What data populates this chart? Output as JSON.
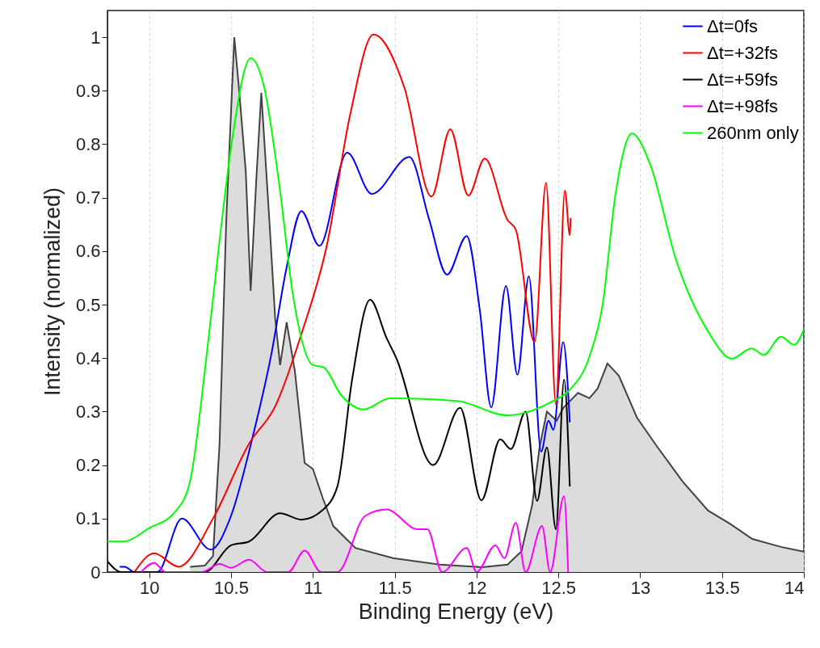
{
  "chart_data": {
    "type": "line",
    "xlabel": "Binding Energy (eV)",
    "ylabel": "Intensity (normalized)",
    "xlim": [
      9.745,
      14
    ],
    "ylim": [
      0,
      1.05
    ],
    "xticks": [
      10,
      10.5,
      11,
      11.5,
      12,
      12.5,
      13,
      13.5,
      14
    ],
    "yticks": [
      0,
      0.1,
      0.2,
      0.3,
      0.4,
      0.5,
      0.6,
      0.7,
      0.8,
      0.9,
      1
    ],
    "grid": "x",
    "legend": "top right",
    "line_style": "solid",
    "marker": "none",
    "series": [
      {
        "type": "area",
        "color": "#dcdcdc",
        "x": [
          10.25,
          10.34,
          10.39,
          10.43,
          10.47,
          10.52,
          10.55,
          10.59,
          10.62,
          10.655,
          10.685,
          10.735,
          10.77,
          10.8,
          10.84,
          10.89,
          10.95,
          11.0,
          11.06,
          11.125,
          11.26,
          11.49,
          11.775,
          12.035,
          12.19,
          12.275,
          12.34,
          12.385,
          12.43,
          12.49,
          12.53,
          12.62,
          12.69,
          12.74,
          12.8,
          12.87,
          12.98,
          13.1,
          13.26,
          13.415,
          13.55,
          13.685,
          13.86,
          14.0
        ],
        "values": [
          0.01,
          0.012,
          0.03,
          0.24,
          0.65,
          1.0,
          0.9,
          0.75,
          0.526,
          0.737,
          0.896,
          0.654,
          0.474,
          0.387,
          0.467,
          0.376,
          0.204,
          0.193,
          0.139,
          0.086,
          0.045,
          0.026,
          0.014,
          0.009,
          0.014,
          0.039,
          0.125,
          0.233,
          0.3,
          0.283,
          0.307,
          0.335,
          0.325,
          0.343,
          0.39,
          0.367,
          0.289,
          0.236,
          0.169,
          0.115,
          0.09,
          0.062,
          0.047,
          0.038
        ]
      },
      {
        "name": "Δt=0fs",
        "color": "#0000ff",
        "x": [
          9.82,
          9.85,
          9.91,
          10.05,
          10.2,
          10.375,
          10.5,
          10.63,
          10.745,
          10.84,
          10.93,
          11.04,
          11.21,
          11.36,
          11.59,
          11.71,
          11.82,
          11.94,
          12.02,
          12.09,
          12.18,
          12.25,
          12.32,
          12.395,
          12.44,
          12.47,
          12.53,
          12.57
        ],
        "values": [
          0.01,
          0.01,
          0.0,
          0.0,
          0.1,
          0.042,
          0.105,
          0.25,
          0.405,
          0.57,
          0.675,
          0.61,
          0.784,
          0.707,
          0.776,
          0.66,
          0.556,
          0.628,
          0.49,
          0.308,
          0.535,
          0.369,
          0.553,
          0.225,
          0.283,
          0.266,
          0.43,
          0.28
        ]
      },
      {
        "name": "Δt=+32fs",
        "color": "#ff0000",
        "x": [
          9.91,
          10.03,
          10.18,
          10.39,
          10.61,
          10.77,
          10.93,
          11.085,
          11.23,
          11.37,
          11.56,
          11.725,
          11.84,
          11.95,
          12.05,
          12.19,
          12.24,
          12.355,
          12.425,
          12.485,
          12.54,
          12.57,
          12.575
        ],
        "values": [
          0.0,
          0.035,
          0.01,
          0.1,
          0.24,
          0.31,
          0.445,
          0.61,
          0.858,
          1.005,
          0.905,
          0.702,
          0.828,
          0.704,
          0.773,
          0.658,
          0.64,
          0.43,
          0.728,
          0.313,
          0.713,
          0.63,
          0.662
        ]
      },
      {
        "name": "Δt=+59fs",
        "color": "#000000",
        "x": [
          9.745,
          9.83,
          10.34,
          10.5,
          10.61,
          10.8,
          10.93,
          11.06,
          11.15,
          11.24,
          11.35,
          11.45,
          11.51,
          11.735,
          11.9,
          12.03,
          12.145,
          12.21,
          12.3,
          12.37,
          12.43,
          12.485,
          12.535,
          12.57
        ],
        "values": [
          0.02,
          0.0,
          0.0,
          0.05,
          0.057,
          0.11,
          0.098,
          0.116,
          0.16,
          0.36,
          0.509,
          0.438,
          0.4,
          0.2,
          0.307,
          0.134,
          0.248,
          0.23,
          0.3,
          0.133,
          0.233,
          0.08,
          0.36,
          0.16
        ]
      },
      {
        "name": "Δt=+98fs",
        "color": "#ff00ff",
        "x": [
          9.95,
          10.03,
          10.1,
          10.32,
          10.43,
          10.5,
          10.61,
          10.72,
          10.85,
          10.95,
          11.05,
          11.15,
          11.32,
          11.45,
          11.64,
          11.7,
          11.79,
          11.94,
          12.0,
          12.115,
          12.17,
          12.24,
          12.3,
          12.4,
          12.45,
          12.535,
          12.56
        ],
        "values": [
          0.0,
          0.017,
          0.0,
          0.0,
          0.015,
          0.008,
          0.023,
          0.0,
          0.0,
          0.04,
          0.0,
          0.0,
          0.105,
          0.117,
          0.08,
          0.08,
          0.0,
          0.045,
          0.0,
          0.05,
          0.026,
          0.092,
          0.0,
          0.086,
          0.0,
          0.142,
          0.0
        ]
      },
      {
        "name": "260nm only",
        "color": "#00ff00",
        "x": [
          9.745,
          9.84,
          10.0,
          10.16,
          10.25,
          10.34,
          10.43,
          10.5,
          10.62,
          10.7,
          10.795,
          10.88,
          11.0,
          11.065,
          11.17,
          11.31,
          11.47,
          11.88,
          12.19,
          12.45,
          12.56,
          12.69,
          12.77,
          12.85,
          12.95,
          13.06,
          13.22,
          13.415,
          13.56,
          13.68,
          13.755,
          13.86,
          13.94,
          14.0
        ],
        "values": [
          0.057,
          0.057,
          0.082,
          0.113,
          0.17,
          0.376,
          0.62,
          0.793,
          0.961,
          0.91,
          0.724,
          0.515,
          0.387,
          0.383,
          0.332,
          0.304,
          0.325,
          0.32,
          0.293,
          0.317,
          0.338,
          0.403,
          0.499,
          0.708,
          0.82,
          0.763,
          0.583,
          0.45,
          0.399,
          0.418,
          0.406,
          0.44,
          0.425,
          0.453
        ]
      }
    ]
  }
}
